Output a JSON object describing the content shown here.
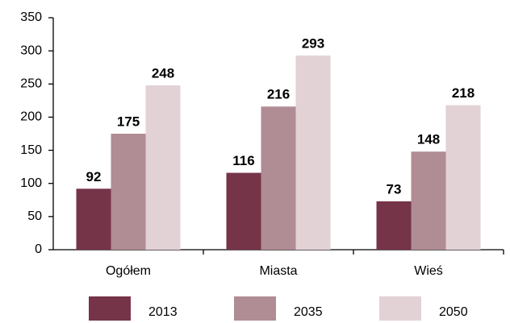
{
  "chart_data": {
    "type": "bar",
    "categories": [
      "Ogółem",
      "Miasta",
      "Wieś"
    ],
    "series": [
      {
        "name": "2013",
        "color": "#763448",
        "values": [
          92,
          116,
          73
        ]
      },
      {
        "name": "2035",
        "color": "#b08c94",
        "values": [
          175,
          216,
          148
        ]
      },
      {
        "name": "2050",
        "color": "#e2d1d5",
        "values": [
          248,
          293,
          218
        ]
      }
    ],
    "ylim": [
      0,
      350
    ],
    "yticks": [
      0,
      50,
      100,
      150,
      200,
      250,
      300,
      350
    ],
    "grid": false,
    "legend": "bottom"
  }
}
